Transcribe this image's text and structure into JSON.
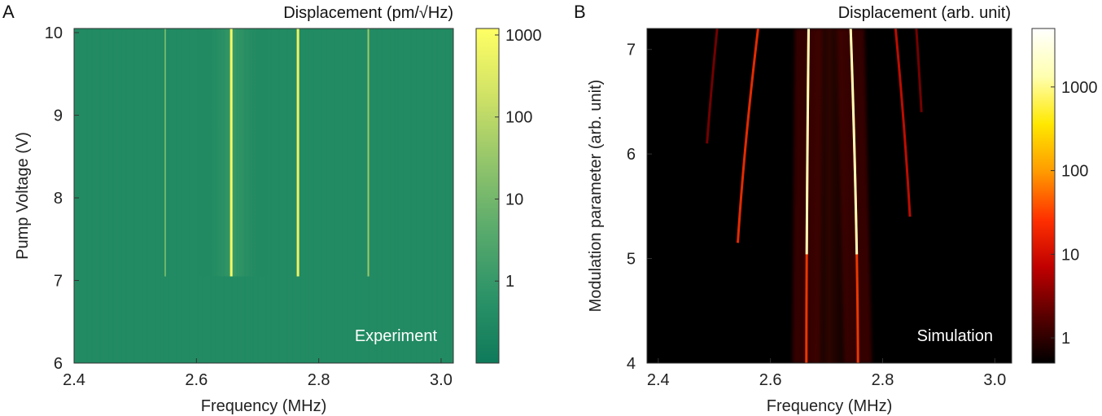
{
  "chart_data": [
    {
      "type": "heatmap",
      "panel_label": "A",
      "colorbar_title": "Displacement (pm/√Hz)",
      "annotation": "Experiment",
      "xlabel": "Frequency (MHz)",
      "ylabel": "Pump Voltage (V)",
      "xlim": [
        2.4,
        3.02
      ],
      "ylim": [
        6.0,
        10.05
      ],
      "x_ticks": [
        "2.4",
        "2.6",
        "2.8",
        "3.0"
      ],
      "x_tick_values": [
        2.4,
        2.6,
        2.8,
        3.0
      ],
      "y_ticks": [
        "6",
        "7",
        "8",
        "9",
        "10"
      ],
      "y_tick_values": [
        6,
        7,
        8,
        9,
        10
      ],
      "colorbar_scale": "log",
      "colorbar_range": [
        0.1,
        1200
      ],
      "colorbar_ticks": [
        "1",
        "10",
        "100",
        "1000"
      ],
      "colorbar_tick_values": [
        1,
        10,
        100,
        1000
      ],
      "colorbar_colors": [
        "#0f7a5a",
        "#2c9368",
        "#5aab6c",
        "#93c56b",
        "#d0e266",
        "#ffff64"
      ],
      "background_level": 0.35,
      "onset_y": 7.05,
      "lines": [
        {
          "x": 2.549,
          "y_from": 7.05,
          "y_to": 10.05,
          "level": 8
        },
        {
          "x": 2.657,
          "y_from": 7.05,
          "y_to": 10.05,
          "level": 900
        },
        {
          "x": 2.766,
          "y_from": 7.05,
          "y_to": 10.05,
          "level": 600
        },
        {
          "x": 2.881,
          "y_from": 7.05,
          "y_to": 10.05,
          "level": 40
        }
      ]
    },
    {
      "type": "heatmap",
      "panel_label": "B",
      "colorbar_title": "Displacement (arb. unit)",
      "annotation": "Simulation",
      "xlabel": "Frequency (MHz)",
      "ylabel": "Modulation parameter (arb. unit)",
      "xlim": [
        2.38,
        3.03
      ],
      "ylim": [
        4.0,
        7.2
      ],
      "x_ticks": [
        "2.4",
        "2.6",
        "2.8",
        "3.0"
      ],
      "x_tick_values": [
        2.4,
        2.6,
        2.8,
        3.0
      ],
      "y_ticks": [
        "4",
        "5",
        "6",
        "7"
      ],
      "y_tick_values": [
        4,
        5,
        6,
        7
      ],
      "colorbar_scale": "log",
      "colorbar_range": [
        0.5,
        5000
      ],
      "colorbar_ticks": [
        "1",
        "10",
        "100",
        "1000"
      ],
      "colorbar_tick_values": [
        1,
        10,
        100,
        1000
      ],
      "colorbar_colors": [
        "#000000",
        "#5a0000",
        "#c00000",
        "#ff3000",
        "#ff9a00",
        "#ffe800",
        "#ffffb0",
        "#ffffff"
      ],
      "lines": [
        {
          "x_at_bottom": 2.664,
          "x_at_top": 2.668,
          "y_from": 4.0,
          "y_to": 7.2,
          "level": 30,
          "bright_above": 5.0,
          "bright_level": 1500
        },
        {
          "x_at_bottom": 2.756,
          "x_at_top": 2.743,
          "y_from": 4.0,
          "y_to": 7.2,
          "level": 30,
          "bright_above": 5.0,
          "bright_level": 1500
        },
        {
          "x_at_bottom": 2.533,
          "x_at_top": 2.578,
          "y_from": 5.15,
          "y_to": 7.2,
          "level": 25
        },
        {
          "x_at_bottom": 2.858,
          "x_at_top": 2.823,
          "y_from": 5.4,
          "y_to": 7.2,
          "level": 10
        },
        {
          "x_at_bottom": 2.468,
          "x_at_top": 2.505,
          "y_from": 6.1,
          "y_to": 7.2,
          "level": 3
        },
        {
          "x_at_bottom": 2.885,
          "x_at_top": 2.86,
          "y_from": 6.4,
          "y_to": 7.2,
          "level": 3
        }
      ]
    }
  ]
}
